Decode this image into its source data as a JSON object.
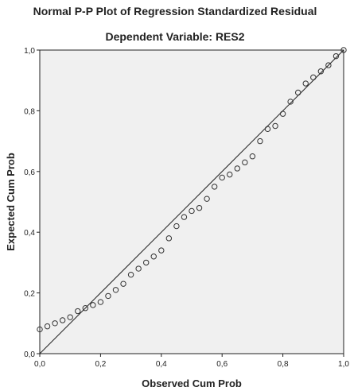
{
  "chart_data": {
    "type": "scatter",
    "title": "Normal P-P Plot of Regression Standardized Residual",
    "subtitle": "Dependent Variable: RES2",
    "x_label": "Observed Cum Prob",
    "y_label": "Expected Cum Prob",
    "x": [
      0,
      0.025,
      0.05,
      0.075,
      0.1,
      0.125,
      0.15,
      0.175,
      0.2,
      0.225,
      0.25,
      0.275,
      0.3,
      0.325,
      0.35,
      0.375,
      0.4,
      0.425,
      0.45,
      0.475,
      0.5,
      0.525,
      0.55,
      0.575,
      0.6,
      0.625,
      0.65,
      0.675,
      0.7,
      0.725,
      0.75,
      0.775,
      0.8,
      0.825,
      0.85,
      0.875,
      0.9,
      0.925,
      0.95,
      0.975,
      1
    ],
    "values": [
      0.08,
      0.09,
      0.1,
      0.11,
      0.12,
      0.14,
      0.15,
      0.16,
      0.17,
      0.19,
      0.21,
      0.23,
      0.26,
      0.28,
      0.3,
      0.32,
      0.34,
      0.38,
      0.42,
      0.45,
      0.47,
      0.48,
      0.51,
      0.55,
      0.58,
      0.59,
      0.61,
      0.63,
      0.65,
      0.7,
      0.74,
      0.75,
      0.79,
      0.83,
      0.86,
      0.89,
      0.91,
      0.93,
      0.95,
      0.98,
      1.0
    ],
    "color": "#333333",
    "xlim": [
      0,
      1
    ],
    "ylim": [
      0,
      1
    ],
    "xticks": [
      {
        "value": 0,
        "label": "0,0"
      },
      {
        "value": 0.2,
        "label": "0,2"
      },
      {
        "value": 0.4,
        "label": "0,4"
      },
      {
        "value": 0.6,
        "label": "0,6"
      },
      {
        "value": 0.8,
        "label": "0,8"
      },
      {
        "value": 1,
        "label": "1,0"
      }
    ],
    "yticks": [
      {
        "value": 0,
        "label": "0,0"
      },
      {
        "value": 0.2,
        "label": "0,2"
      },
      {
        "value": 0.4,
        "label": "0,4"
      },
      {
        "value": 0.6,
        "label": "0,6"
      },
      {
        "value": 0.8,
        "label": "0,8"
      },
      {
        "value": 1,
        "label": "1,0"
      }
    ]
  }
}
